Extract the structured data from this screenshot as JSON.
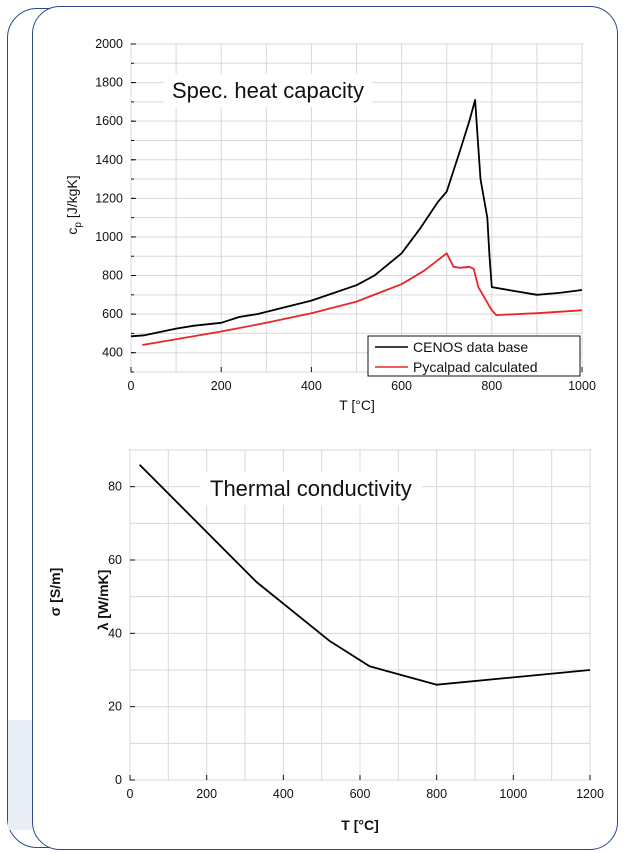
{
  "chart_data": [
    {
      "type": "line",
      "title": "Spec. heat capacity",
      "xlabel": "T [°C]",
      "ylabel_main": "c",
      "ylabel_sub": "p",
      "ylabel_unit": " [J/kgK]",
      "xlim": [
        0,
        1000
      ],
      "ylim": [
        300,
        2000
      ],
      "xticks": [
        0,
        200,
        400,
        600,
        800,
        1000
      ],
      "yticks": [
        400,
        600,
        800,
        1000,
        1200,
        1400,
        1600,
        1800,
        2000
      ],
      "grid": true,
      "legend_position": "bottom-right",
      "series": [
        {
          "name": "CENOS data base",
          "color": "#000000",
          "x": [
            0,
            30,
            100,
            140,
            200,
            240,
            280,
            340,
            400,
            450,
            500,
            540,
            600,
            640,
            680,
            700,
            730,
            750,
            763,
            775,
            790,
            795,
            800,
            850,
            900,
            950,
            1000
          ],
          "y": [
            485,
            490,
            525,
            540,
            555,
            585,
            600,
            635,
            670,
            710,
            750,
            800,
            915,
            1040,
            1180,
            1235,
            1450,
            1600,
            1710,
            1300,
            1100,
            900,
            740,
            720,
            700,
            710,
            725
          ]
        },
        {
          "name": "Pycalpad calculated",
          "color": "#e8262b",
          "x": [
            25,
            100,
            200,
            300,
            400,
            500,
            600,
            650,
            700,
            715,
            730,
            750,
            760,
            770,
            800,
            810,
            900,
            1000
          ],
          "y": [
            440,
            470,
            510,
            555,
            605,
            665,
            755,
            825,
            915,
            845,
            840,
            845,
            835,
            740,
            620,
            595,
            605,
            620
          ]
        }
      ]
    },
    {
      "type": "line",
      "title": "Thermal conductivity",
      "xlabel": "T [°C]",
      "ylabel_main": "λ",
      "ylabel_unit": " [W/mK]",
      "behind_label": "σ [S/m]",
      "xlim": [
        0,
        1200
      ],
      "ylim": [
        0,
        90
      ],
      "xticks": [
        0,
        200,
        400,
        600,
        800,
        1000,
        1200
      ],
      "yticks": [
        0,
        20,
        40,
        60,
        80
      ],
      "grid": true,
      "series": [
        {
          "color": "#000000",
          "x": [
            25,
            330,
            520,
            625,
            800,
            1200
          ],
          "y": [
            86,
            54,
            38,
            31,
            26,
            30
          ]
        }
      ]
    }
  ]
}
